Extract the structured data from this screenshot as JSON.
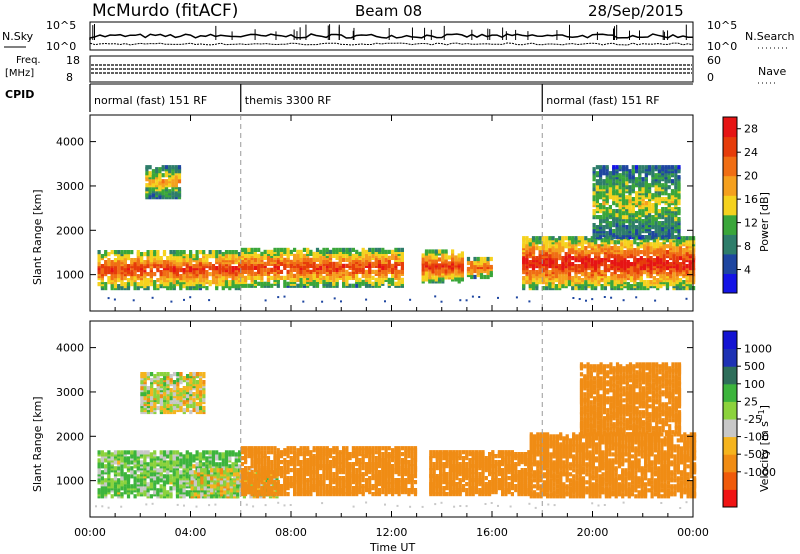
{
  "header": {
    "site": "McMurdo (fitACF)",
    "beam": "Beam 08",
    "date": "28/Sep/2015"
  },
  "status_panels": {
    "sky_label": "N.Sky",
    "search_label": "N.Search",
    "sky_ticks": [
      "10^5",
      "10^0"
    ],
    "search_ticks": [
      "10^5",
      "10^0"
    ],
    "freq_label_1": "Freq.",
    "freq_label_2": "[MHz]",
    "freq_ticks": [
      "18",
      "8"
    ],
    "nave_label": "Nave",
    "nave_ticks": [
      "60",
      "0"
    ],
    "cpid_label": "CPID",
    "modes": [
      {
        "name": "normal (fast) 151 RF",
        "start_h": 0,
        "end_h": 6
      },
      {
        "name": "themis 3300 RF",
        "start_h": 6,
        "end_h": 18
      },
      {
        "name": "normal (fast) 151 RF",
        "start_h": 18,
        "end_h": 24
      }
    ]
  },
  "colors": {
    "power": [
      "#1414e6",
      "#1e46a0",
      "#2e7d6a",
      "#3aa63a",
      "#f5d21e",
      "#f5a01e",
      "#f06e14",
      "#e63c0a",
      "#e61414"
    ],
    "velocity": [
      "#f01414",
      "#f05a0a",
      "#f08c14",
      "#f5b41e",
      "#c8c8c8",
      "#8cd23c",
      "#3cb43c",
      "#2e6e5a",
      "#1e32b4",
      "#1414d2"
    ]
  },
  "chart_data": [
    {
      "type": "heatmap",
      "name": "power",
      "xlabel": "",
      "ylabel": "Slant Range [km]",
      "x_range_hours": [
        0,
        24
      ],
      "xticks": [
        "00:00",
        "04:00",
        "08:00",
        "12:00",
        "16:00",
        "20:00",
        "00:00"
      ],
      "yticks": [
        1000,
        2000,
        3000,
        4000
      ],
      "ylim": [
        180,
        4600
      ],
      "colorbar": {
        "label": "Power [dB]",
        "ticks": [
          4,
          8,
          12,
          16,
          20,
          24,
          28
        ],
        "range": [
          0,
          30
        ]
      },
      "echo_bands": [
        {
          "t0": 0.3,
          "t1": 6.0,
          "r_lo": 650,
          "r_hi": 1500,
          "peak_db": 26
        },
        {
          "t0": 6.0,
          "t1": 12.5,
          "r_lo": 700,
          "r_hi": 1550,
          "peak_db": 26
        },
        {
          "t0": 13.2,
          "t1": 14.8,
          "r_lo": 800,
          "r_hi": 1500,
          "peak_db": 27
        },
        {
          "t0": 15.0,
          "t1": 16.0,
          "r_lo": 900,
          "r_hi": 1350,
          "peak_db": 24
        },
        {
          "t0": 17.2,
          "t1": 24.0,
          "r_lo": 650,
          "r_hi": 1800,
          "peak_db": 29
        },
        {
          "t0": 2.2,
          "t1": 3.5,
          "r_lo": 2700,
          "r_hi": 3400,
          "peak_db": 18
        },
        {
          "t0": 20.0,
          "t1": 23.5,
          "r_lo": 1800,
          "r_hi": 3400,
          "peak_db": 14
        }
      ]
    },
    {
      "type": "heatmap",
      "name": "velocity",
      "xlabel": "Time UT",
      "ylabel": "Slant Range [km]",
      "x_range_hours": [
        0,
        24
      ],
      "xticks": [
        "00:00",
        "04:00",
        "08:00",
        "12:00",
        "16:00",
        "20:00",
        "00:00"
      ],
      "yticks": [
        1000,
        2000,
        3000,
        4000
      ],
      "ylim": [
        180,
        4600
      ],
      "colorbar": {
        "label": "Velocity [m s^-1]",
        "ticks": [
          1000,
          500,
          100,
          25,
          -25,
          -100,
          -500,
          -1000
        ]
      },
      "echo_bands": [
        {
          "t0": 0.3,
          "t1": 6.0,
          "r_lo": 600,
          "r_hi": 1600,
          "velocity": 100
        },
        {
          "t0": 4.0,
          "t1": 7.5,
          "r_lo": 600,
          "r_hi": 1200,
          "velocity": 0
        },
        {
          "t0": 6.0,
          "t1": 13.0,
          "r_lo": 650,
          "r_hi": 1700,
          "velocity": -300
        },
        {
          "t0": 13.5,
          "t1": 17.5,
          "r_lo": 650,
          "r_hi": 1600,
          "velocity": -300
        },
        {
          "t0": 17.5,
          "t1": 24.0,
          "r_lo": 600,
          "r_hi": 2000,
          "velocity": -250
        },
        {
          "t0": 2.0,
          "t1": 4.5,
          "r_lo": 2500,
          "r_hi": 3400,
          "velocity": 0
        },
        {
          "t0": 19.5,
          "t1": 23.5,
          "r_lo": 2000,
          "r_hi": 3600,
          "velocity": -300
        }
      ]
    }
  ]
}
